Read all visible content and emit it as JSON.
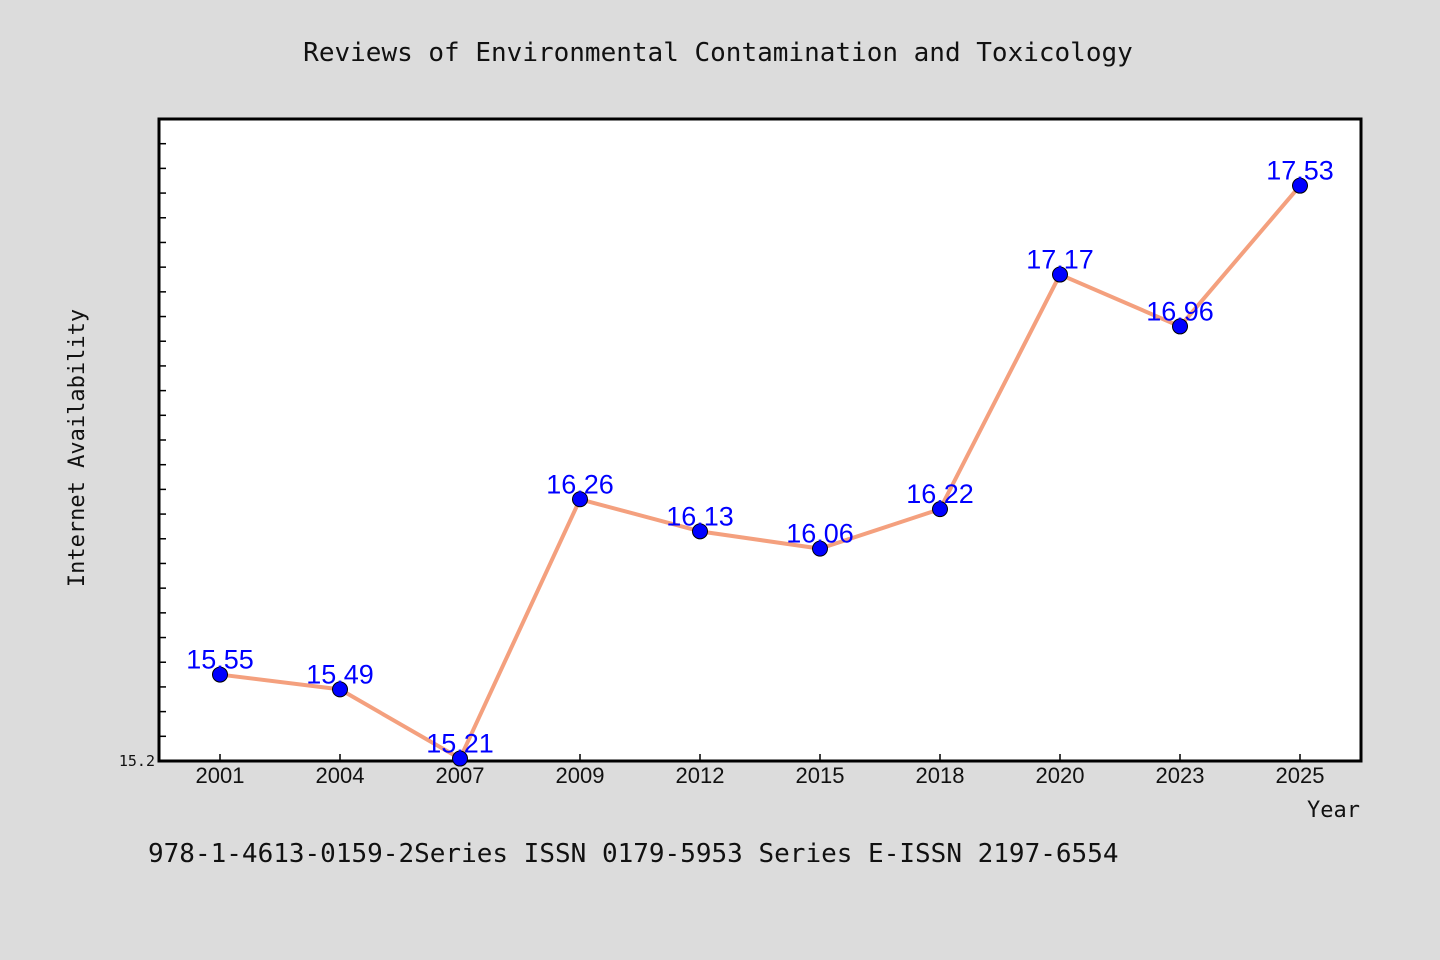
{
  "chart_data": {
    "type": "line",
    "title": "Reviews of Environmental Contamination and Toxicology",
    "xlabel": "Year",
    "ylabel": "Internet Availability",
    "categories": [
      "2001",
      "2004",
      "2007",
      "2009",
      "2012",
      "2015",
      "2018",
      "2020",
      "2023",
      "2025"
    ],
    "series": [
      {
        "values": [
          15.55,
          15.49,
          15.21,
          16.26,
          16.13,
          16.06,
          16.22,
          17.17,
          16.96,
          17.53
        ]
      }
    ],
    "data_labels": [
      "15.55",
      "15.49",
      "15.21",
      "16.26",
      "16.13",
      "16.06",
      "16.22",
      "17.17",
      "16.96",
      "17.53"
    ],
    "ylim": [
      15.2,
      17.8
    ],
    "ytick_labels": [
      "15.2"
    ],
    "grid": false,
    "legend": "none",
    "footnote": "978-1-4613-0159-2Series ISSN 0179-5953 Series E-ISSN 2197-6554",
    "colors": {
      "line": "#f4a07e",
      "marker": "#0000ff",
      "label": "#0000ff",
      "background": "#dcdcdc",
      "plot_background": "#ffffff"
    }
  }
}
